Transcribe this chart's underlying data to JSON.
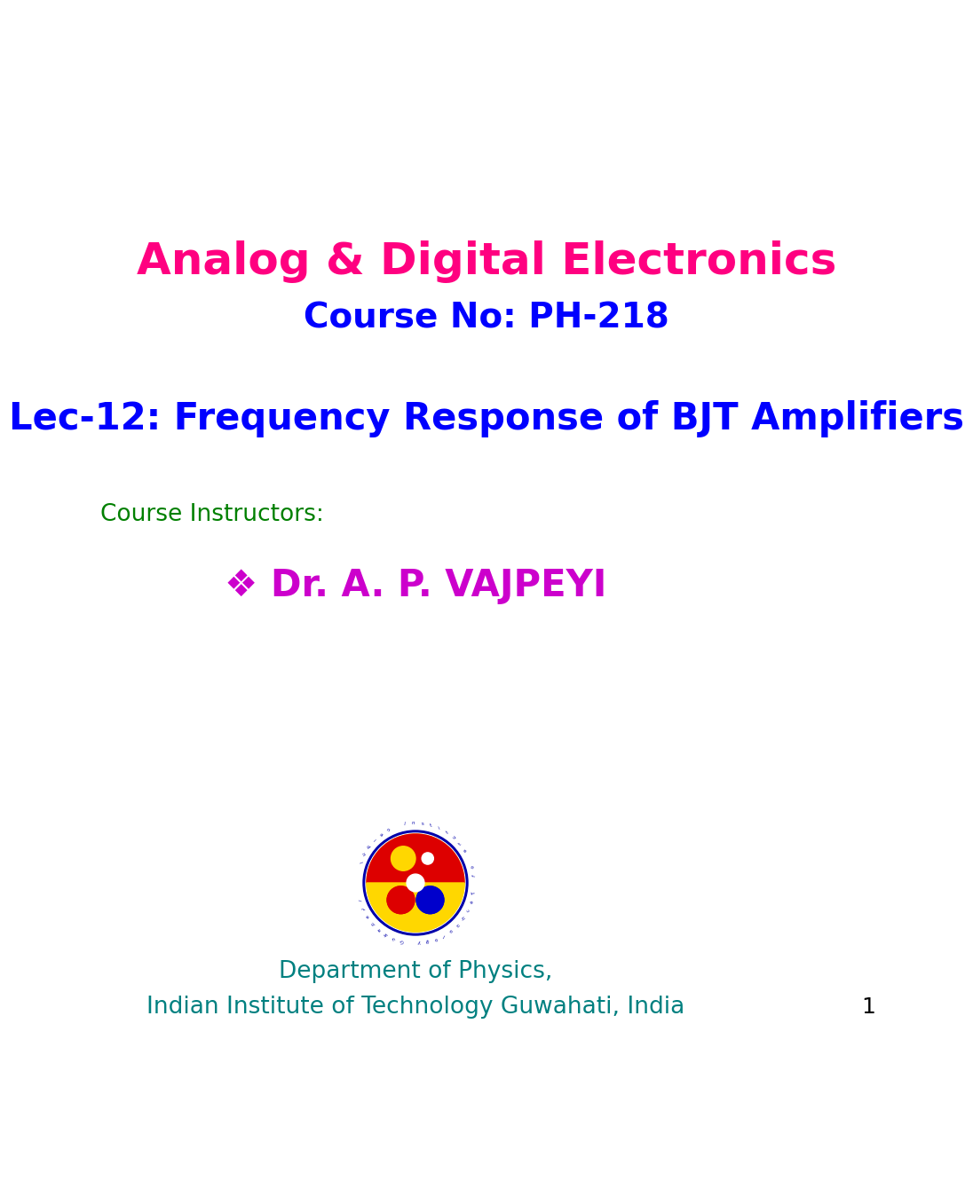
{
  "bg_color": "#ffffff",
  "title_line1": "Analog & Digital Electronics",
  "title_line1_color": "#ff0080",
  "title_line2": "Course No: PH-218",
  "title_line2_color": "#0000ff",
  "lec_title": "Lec-12: Frequency Response of BJT Amplifiers",
  "lec_title_color": "#0000ff",
  "instructors_label": "Course Instructors:",
  "instructors_label_color": "#008000",
  "instructor_name": "❖ Dr. A. P. VAJPEYI",
  "instructor_name_color": "#cc00cc",
  "dept_line1": "Department of Physics,",
  "dept_line2": "Indian Institute of Technology Guwahati, India",
  "dept_color": "#008080",
  "page_number": "1",
  "page_number_color": "#000000",
  "title_fontsize": 36,
  "course_fontsize": 28,
  "lec_fontsize": 30,
  "instructor_label_fontsize": 19,
  "instructor_name_fontsize": 30,
  "dept_fontsize": 19,
  "page_fontsize": 18
}
